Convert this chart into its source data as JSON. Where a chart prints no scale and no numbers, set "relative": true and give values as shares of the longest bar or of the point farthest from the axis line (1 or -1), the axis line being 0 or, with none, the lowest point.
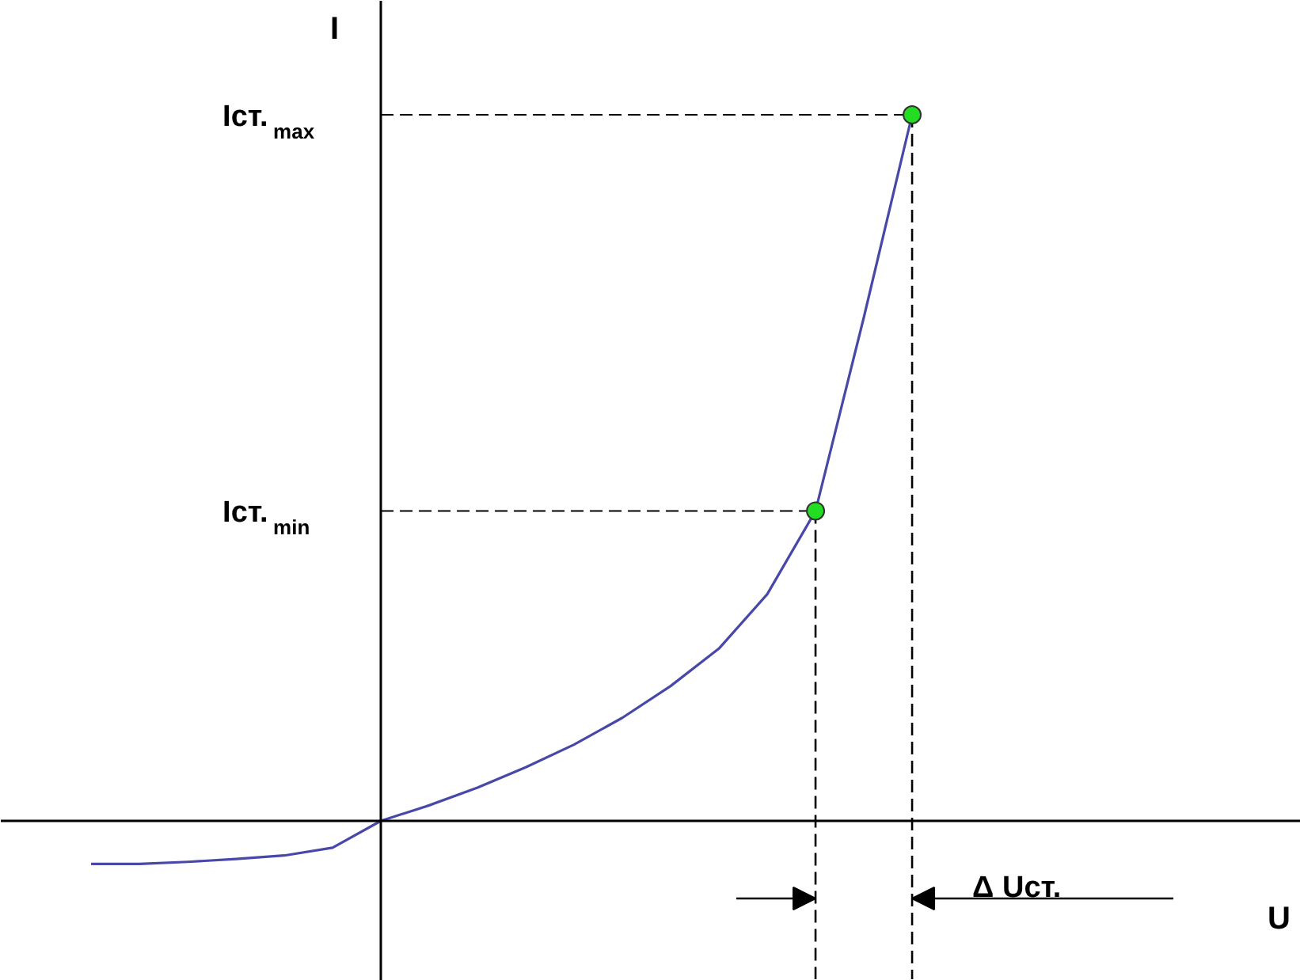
{
  "chart_data": {
    "type": "line",
    "relative": true,
    "ylabel": "I",
    "categories": [
      null,
      null,
      null,
      null,
      null,
      null,
      null,
      null,
      null,
      null,
      null,
      null,
      null,
      null,
      null,
      null,
      null,
      null
    ],
    "series": [
      {
        "color": "#4848a8",
        "values": [
          -0.061,
          -0.061,
          -0.058,
          -0.054,
          -0.049,
          -0.038,
          0,
          0.022,
          0.047,
          0.076,
          0.108,
          0.146,
          0.191,
          0.244,
          0.321,
          0.439,
          0.713,
          1
        ]
      }
    ],
    "ref_lines": [
      {
        "axis": "y",
        "value": 1,
        "label": "Iст.$_{max}$",
        "color": "#000000",
        "line_style": "dashed"
      },
      {
        "axis": "y",
        "value": 0.439,
        "label": "Iст.$_{min}$",
        "color": "#000000",
        "line_style": "dashed"
      }
    ],
    "annotations": [
      "Δ Uст.",
      "U"
    ],
    "grid": false,
    "marker": "none",
    "line_style": "solid"
  }
}
